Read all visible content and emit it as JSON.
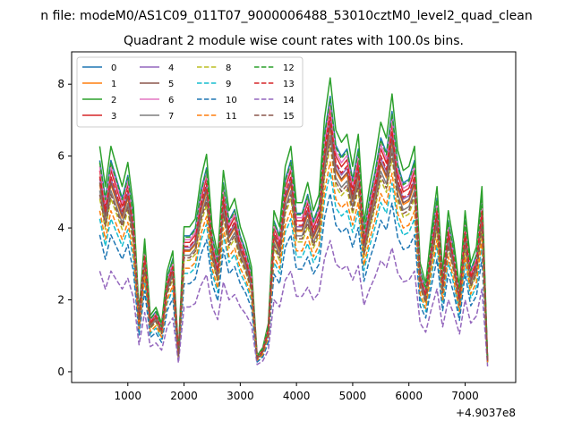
{
  "figure": {
    "suptitle": "n file: modeM0/AS1C09_011T07_9000006488_53010cztM0_level2_quad_clean",
    "offset_text": "+4.9037e8"
  },
  "chart_data": {
    "type": "line",
    "title": "Quadrant 2 module wise count rates with 100.0s bins.",
    "xlabel": "",
    "ylabel": "",
    "xlim": [
      0,
      7900
    ],
    "ylim": [
      -0.3,
      8.9
    ],
    "x_offset": "+4.9037e8",
    "xticks": [
      1000,
      2000,
      3000,
      4000,
      5000,
      6000,
      7000
    ],
    "yticks": [
      0,
      2,
      4,
      6,
      8
    ],
    "xtick_labels": [
      "1000",
      "2000",
      "3000",
      "4000",
      "5000",
      "6000",
      "7000"
    ],
    "ytick_labels": [
      "0",
      "2",
      "4",
      "6",
      "8"
    ],
    "grid": false,
    "legend": "upper-left, 4 columns",
    "x": [
      500,
      600,
      700,
      800,
      900,
      1000,
      1100,
      1200,
      1300,
      1400,
      1500,
      1600,
      1700,
      1800,
      1900,
      2000,
      2100,
      2200,
      2300,
      2400,
      2500,
      2600,
      2700,
      2800,
      2900,
      3000,
      3100,
      3200,
      3300,
      3400,
      3500,
      3600,
      3700,
      3800,
      3900,
      4000,
      4100,
      4200,
      4300,
      4400,
      4500,
      4600,
      4700,
      4800,
      4900,
      5000,
      5100,
      5200,
      5300,
      5400,
      5500,
      5600,
      5700,
      5800,
      5900,
      6000,
      6100,
      6200,
      6300,
      6400,
      6500,
      6600,
      6700,
      6800,
      6900,
      7000,
      7100,
      7200,
      7300,
      7400
    ],
    "base": [
      5.6,
      4.6,
      5.6,
      5.1,
      4.6,
      5.2,
      4.1,
      1.5,
      3.3,
      1.4,
      1.6,
      1.2,
      2.5,
      3.0,
      0.5,
      3.6,
      3.6,
      3.8,
      4.8,
      5.4,
      3.6,
      2.9,
      5.0,
      4.0,
      4.3,
      3.6,
      3.2,
      2.6,
      0.4,
      0.6,
      1.2,
      4.0,
      3.6,
      5.1,
      5.6,
      4.2,
      4.2,
      4.7,
      4.0,
      4.4,
      6.3,
      7.3,
      6.0,
      5.7,
      5.9,
      5.1,
      5.9,
      3.7,
      4.6,
      5.3,
      6.2,
      5.8,
      6.9,
      5.5,
      5.0,
      5.1,
      5.6,
      2.7,
      2.2,
      3.5,
      4.6,
      2.5,
      4.0,
      3.2,
      2.1,
      4.0,
      2.7,
      3.1,
      4.6,
      0.3
    ],
    "series": [
      {
        "name": "0",
        "color": "#1f77b4",
        "dash": false,
        "scale": 1.05,
        "shift": 0.0
      },
      {
        "name": "1",
        "color": "#ff7f0e",
        "dash": false,
        "scale": 0.93,
        "shift": 0.0
      },
      {
        "name": "2",
        "color": "#2ca02c",
        "dash": false,
        "scale": 1.12,
        "shift": 0.0
      },
      {
        "name": "3",
        "color": "#d62728",
        "dash": false,
        "scale": 1.0,
        "shift": 0.0
      },
      {
        "name": "4",
        "color": "#9467bd",
        "dash": false,
        "scale": 0.96,
        "shift": 0.0
      },
      {
        "name": "5",
        "color": "#8c564b",
        "dash": false,
        "scale": 0.94,
        "shift": 0.0
      },
      {
        "name": "6",
        "color": "#e377c2",
        "dash": false,
        "scale": 1.02,
        "shift": 0.0
      },
      {
        "name": "7",
        "color": "#7f7f7f",
        "dash": false,
        "scale": 0.9,
        "shift": 0.0
      },
      {
        "name": "8",
        "color": "#bcbd22",
        "dash": true,
        "scale": 0.86,
        "shift": 0.0
      },
      {
        "name": "9",
        "color": "#17becf",
        "dash": true,
        "scale": 0.76,
        "shift": 0.0
      },
      {
        "name": "10",
        "color": "#1f77b4",
        "dash": true,
        "scale": 0.68,
        "shift": 0.0
      },
      {
        "name": "11",
        "color": "#ff7f0e",
        "dash": true,
        "scale": 0.8,
        "shift": 0.0
      },
      {
        "name": "12",
        "color": "#2ca02c",
        "dash": true,
        "scale": 1.04,
        "shift": 0.0
      },
      {
        "name": "13",
        "color": "#d62728",
        "dash": true,
        "scale": 0.97,
        "shift": 0.0
      },
      {
        "name": "14",
        "color": "#9467bd",
        "dash": true,
        "scale": 0.5,
        "shift": 0.0
      },
      {
        "name": "15",
        "color": "#8c564b",
        "dash": true,
        "scale": 0.88,
        "shift": 0.0
      }
    ]
  }
}
